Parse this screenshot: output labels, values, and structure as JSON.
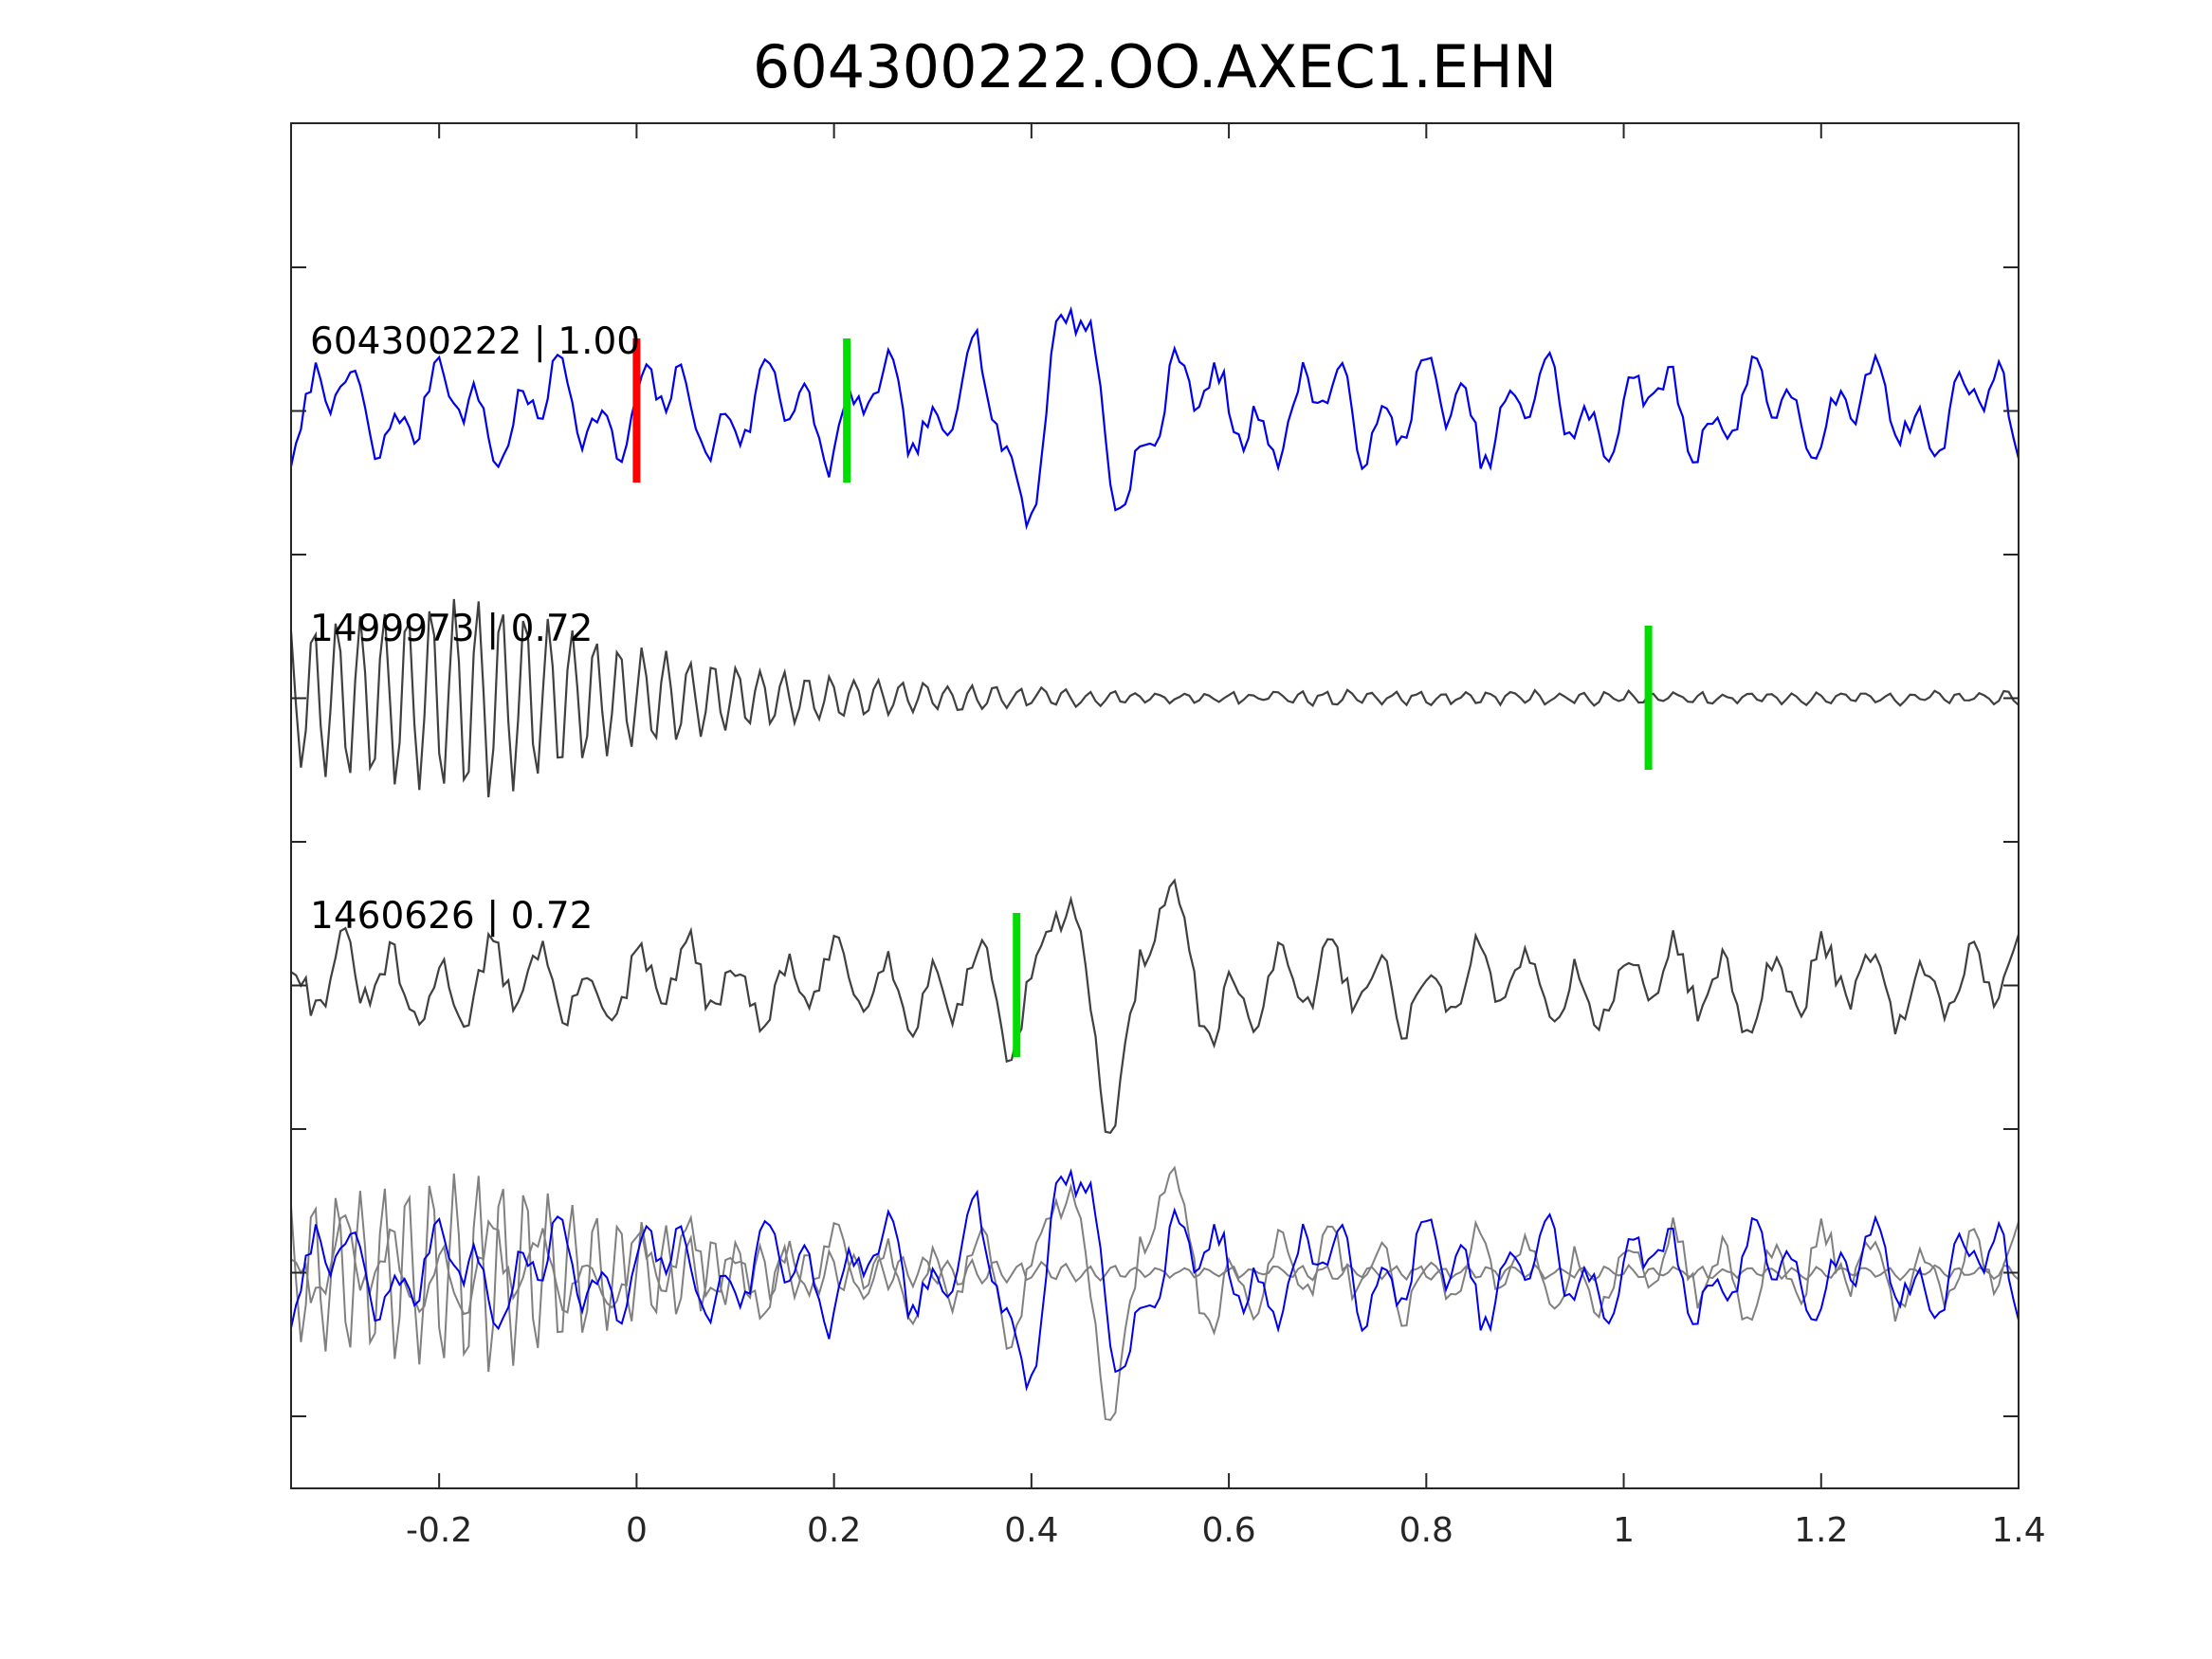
{
  "chart_data": {
    "type": "line",
    "title": "604300222.OO.AXEC1.EHN",
    "xlabel": "",
    "ylabel": "",
    "xlim": [
      -0.35,
      1.4
    ],
    "xticks": [
      "-0.2",
      "0",
      "0.2",
      "0.4",
      "0.6",
      "0.8",
      "1",
      "1.2",
      "1.4"
    ],
    "xtick_values": [
      -0.2,
      0,
      0.2,
      0.4,
      0.6,
      0.8,
      1.0,
      1.2,
      1.4
    ],
    "y_ticks_count": 9,
    "grid": false,
    "legend": "none",
    "colors": {
      "reference": "#0000ee",
      "other_trace": "#404040",
      "overlay_trace": "#808080",
      "pick_red": "#ff0000",
      "pick_green": "#00dd00",
      "axes": "#262626"
    },
    "series": [
      {
        "label": "604300222 | 1.00",
        "color": "#0000ee",
        "style": "noise",
        "amplitude": 0.28,
        "picks": [
          {
            "x": 0.0,
            "color": "#ff0000"
          },
          {
            "x": 0.213,
            "color": "#00dd00"
          }
        ]
      },
      {
        "label": "1499973 | 0.72",
        "color": "#404040",
        "style": "decaying-oscillation",
        "amplitude": 1.0,
        "picks": [
          {
            "x": 1.025,
            "color": "#00dd00"
          }
        ]
      },
      {
        "label": "1460626 | 0.72",
        "color": "#404040",
        "style": "noise-with-burst",
        "amplitude": 0.3,
        "picks": [
          {
            "x": 0.385,
            "color": "#00dd00"
          }
        ]
      }
    ],
    "overlay": {
      "description_traces": [
        "604300222",
        "1499973",
        "1460626"
      ]
    }
  }
}
